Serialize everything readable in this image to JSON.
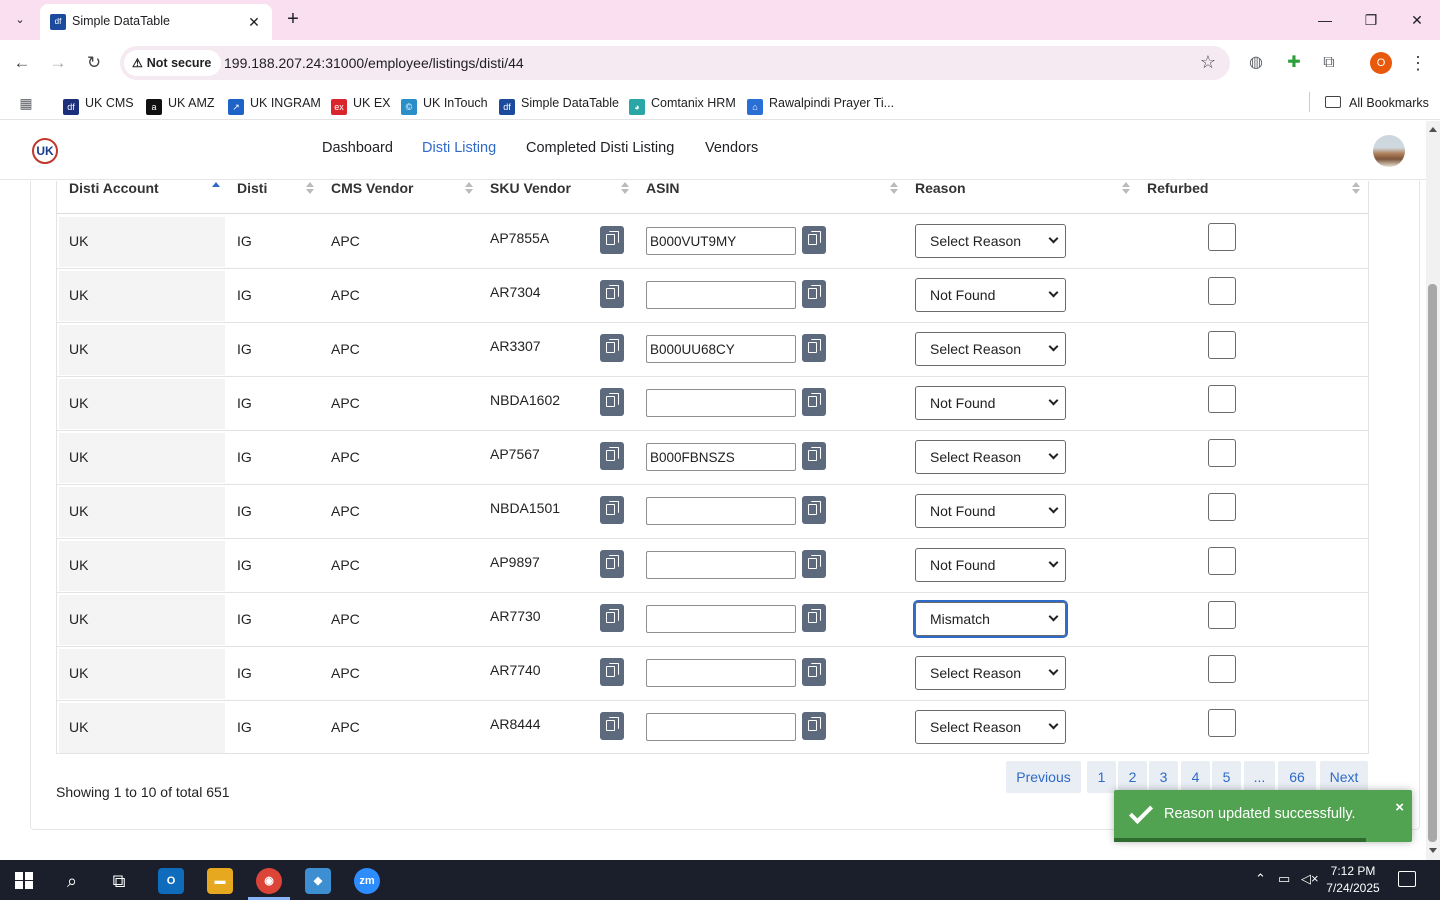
{
  "browser": {
    "tab_title": "Simple DataTable",
    "tab_favicon": "df",
    "security_label": "Not secure",
    "url": "199.188.207.24:31000/employee/listings/disti/44",
    "profile_initial": "O"
  },
  "bookmarks": [
    {
      "label": "UK CMS",
      "icon": "uk-cms-icon",
      "color": "#1c2f7a",
      "glyph": "df"
    },
    {
      "label": "UK AMZ",
      "icon": "amazon-icon",
      "color": "#111111",
      "glyph": "a"
    },
    {
      "label": "UK INGRAM",
      "icon": "ingram-icon",
      "color": "#1e64c8",
      "glyph": "↗"
    },
    {
      "label": "UK EX",
      "icon": "ex-icon",
      "color": "#d9262c",
      "glyph": "ex"
    },
    {
      "label": "UK InTouch",
      "icon": "intouch-icon",
      "color": "#2a8ec9",
      "glyph": "©"
    },
    {
      "label": "Simple DataTable",
      "icon": "datatable-icon",
      "color": "#1c4b9e",
      "glyph": "df"
    },
    {
      "label": "Comtanix HRM",
      "icon": "hrm-icon",
      "color": "#2aa6a6",
      "glyph": "◕"
    },
    {
      "label": "Rawalpindi Prayer Ti...",
      "icon": "prayer-icon",
      "color": "#2a6fd6",
      "glyph": "⌂"
    }
  ],
  "all_bookmarks_label": "All Bookmarks",
  "nav": {
    "items": [
      "Dashboard",
      "Disti Listing",
      "Completed Disti Listing",
      "Vendors"
    ],
    "active": "Disti Listing"
  },
  "table": {
    "columns": [
      "Disti Account",
      "Disti",
      "CMS Vendor",
      "SKU Vendor",
      "ASIN",
      "Reason",
      "Refurbed"
    ],
    "sorted_column": "Disti Account",
    "rows": [
      {
        "account": "UK",
        "disti": "IG",
        "vendor": "APC",
        "sku": "AP7855A",
        "asin": "B000VUT9MY",
        "reason": "Select Reason",
        "refurbed": false
      },
      {
        "account": "UK",
        "disti": "IG",
        "vendor": "APC",
        "sku": "AR7304",
        "asin": "",
        "reason": "Not Found",
        "refurbed": false
      },
      {
        "account": "UK",
        "disti": "IG",
        "vendor": "APC",
        "sku": "AR3307",
        "asin": "B000UU68CY",
        "reason": "Select Reason",
        "refurbed": false
      },
      {
        "account": "UK",
        "disti": "IG",
        "vendor": "APC",
        "sku": "NBDA1602",
        "asin": "",
        "reason": "Not Found",
        "refurbed": false
      },
      {
        "account": "UK",
        "disti": "IG",
        "vendor": "APC",
        "sku": "AP7567",
        "asin": "B000FBNSZS",
        "reason": "Select Reason",
        "refurbed": false
      },
      {
        "account": "UK",
        "disti": "IG",
        "vendor": "APC",
        "sku": "NBDA1501",
        "asin": "",
        "reason": "Not Found",
        "refurbed": false
      },
      {
        "account": "UK",
        "disti": "IG",
        "vendor": "APC",
        "sku": "AP9897",
        "asin": "",
        "reason": "Not Found",
        "refurbed": false
      },
      {
        "account": "UK",
        "disti": "IG",
        "vendor": "APC",
        "sku": "AR7730",
        "asin": "",
        "reason": "Mismatch",
        "refurbed": false,
        "focused": true
      },
      {
        "account": "UK",
        "disti": "IG",
        "vendor": "APC",
        "sku": "AR7740",
        "asin": "",
        "reason": "Select Reason",
        "refurbed": false
      },
      {
        "account": "UK",
        "disti": "IG",
        "vendor": "APC",
        "sku": "AR8444",
        "asin": "",
        "reason": "Select Reason",
        "refurbed": false
      }
    ]
  },
  "footer": {
    "showing_text": "Showing 1 to 10 of total 651",
    "pagination": [
      "Previous",
      "1",
      "2",
      "3",
      "4",
      "5",
      "...",
      "66",
      "Next"
    ]
  },
  "toast": {
    "message": "Reason updated successfully.",
    "close": "×",
    "color": "#51a351"
  },
  "taskbar": {
    "time": "7:12 PM",
    "date": "7/24/2025"
  },
  "colors": {
    "accent": "#2f6ac8",
    "tab_strip": "#f9dff0",
    "copy_button": "#5d6a7d"
  }
}
